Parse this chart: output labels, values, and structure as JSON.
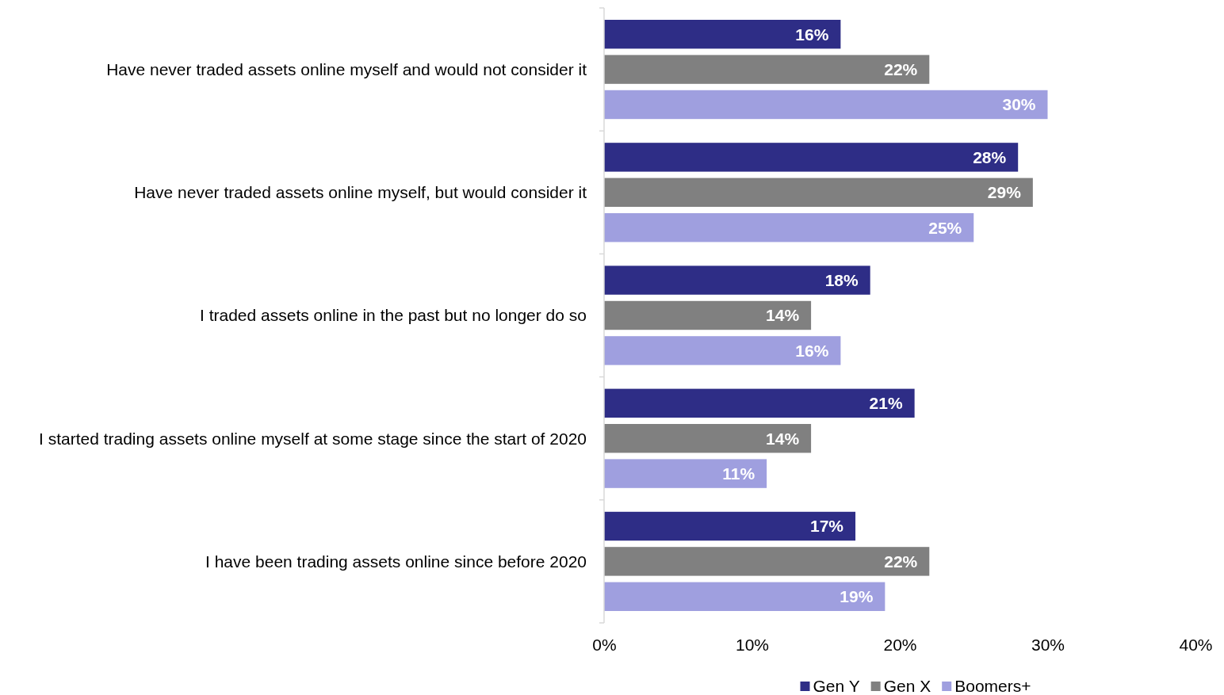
{
  "chart_data": {
    "type": "bar",
    "orientation": "horizontal",
    "categories": [
      "Have never traded assets online myself and would not consider it",
      "Have never traded assets online myself, but would consider it",
      "I traded assets online in the past but no longer do so",
      "I started trading assets online myself at some stage since the start of 2020",
      "I have been trading assets online since before 2020"
    ],
    "series": [
      {
        "name": "Gen Y",
        "color": "#2e2d86",
        "values": [
          16,
          28,
          18,
          21,
          17
        ],
        "value_labels": [
          "16%",
          "28%",
          "18%",
          "21%",
          "17%"
        ]
      },
      {
        "name": "Gen X",
        "color": "#808080",
        "values": [
          22,
          29,
          14,
          14,
          22
        ],
        "value_labels": [
          "22%",
          "29%",
          "14%",
          "14%",
          "22%"
        ]
      },
      {
        "name": "Boomers+",
        "color": "#9f9fdf",
        "values": [
          30,
          25,
          16,
          11,
          19
        ],
        "value_labels": [
          "30%",
          "25%",
          "16%",
          "11%",
          "19%"
        ]
      }
    ],
    "xlim": [
      0,
      40
    ],
    "xticks": [
      {
        "value": 0,
        "label": "0%"
      },
      {
        "value": 10,
        "label": "10%"
      },
      {
        "value": 20,
        "label": "20%"
      },
      {
        "value": 30,
        "label": "30%"
      },
      {
        "value": 40,
        "label": "40%"
      }
    ],
    "grid": false,
    "legend": "bottom"
  }
}
